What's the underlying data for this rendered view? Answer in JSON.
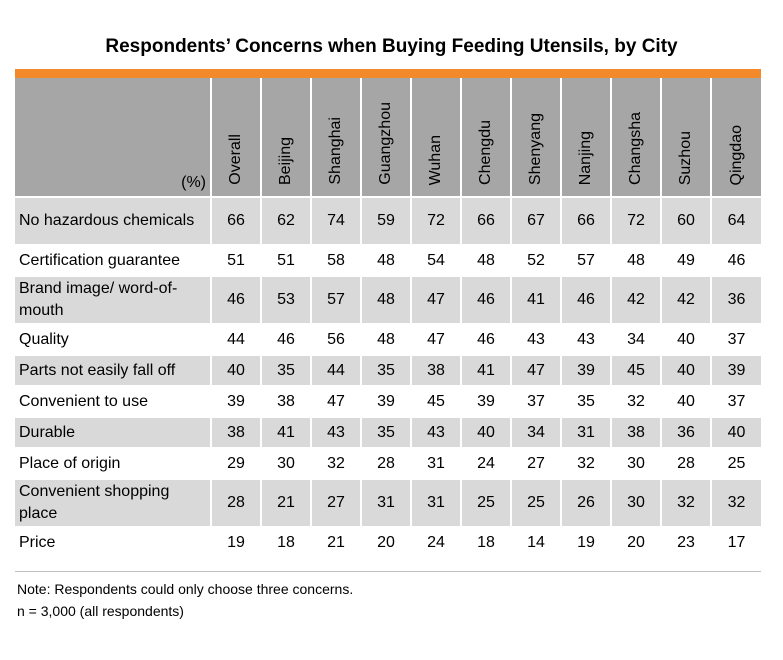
{
  "chart_data": {
    "type": "table",
    "title": "Respondents’ Concerns when Buying Feeding Utensils, by City",
    "unit": "(%)",
    "columns": [
      "Overall",
      "Beijing",
      "Shanghai",
      "Guangzhou",
      "Wuhan",
      "Chengdu",
      "Shenyang",
      "Nanjing",
      "Changsha",
      "Suzhou",
      "Qingdao"
    ],
    "rows": [
      {
        "label": "No hazardous chemicals",
        "values": [
          "66",
          "62",
          "74",
          "59",
          "72",
          "66",
          "67",
          "66",
          "72",
          "60",
          "64"
        ]
      },
      {
        "label": "Certification guarantee",
        "values": [
          "51",
          "51",
          "58",
          "48",
          "54",
          "48",
          "52",
          "57",
          "48",
          "49",
          "46"
        ]
      },
      {
        "label": "Brand image/ word-of-mouth",
        "values": [
          "46",
          "53",
          "57",
          "48",
          "47",
          "46",
          "41",
          "46",
          "42",
          "42",
          "36"
        ]
      },
      {
        "label": "Quality",
        "values": [
          "44",
          "46",
          "56",
          "48",
          "47",
          "46",
          "43",
          "43",
          "34",
          "40",
          "37"
        ]
      },
      {
        "label": "Parts not easily fall off",
        "values": [
          "40",
          "35",
          "44",
          "35",
          "38",
          "41",
          "47",
          "39",
          "45",
          "40",
          "39"
        ]
      },
      {
        "label": "Convenient to use",
        "values": [
          "39",
          "38",
          "47",
          "39",
          "45",
          "39",
          "37",
          "35",
          "32",
          "40",
          "37"
        ]
      },
      {
        "label": "Durable",
        "values": [
          "38",
          "41",
          "43",
          "35",
          "43",
          "40",
          "34",
          "31",
          "38",
          "36",
          "40"
        ]
      },
      {
        "label": "Place of origin",
        "values": [
          "29",
          "30",
          "32",
          "28",
          "31",
          "24",
          "27",
          "32",
          "30",
          "28",
          "25"
        ]
      },
      {
        "label": "Convenient shopping place",
        "values": [
          "28",
          "21",
          "27",
          "31",
          "31",
          "25",
          "25",
          "26",
          "30",
          "32",
          "32"
        ]
      },
      {
        "label": "Price",
        "values": [
          "19",
          "18",
          "21",
          "20",
          "24",
          "18",
          "14",
          "19",
          "20",
          "23",
          "17"
        ]
      }
    ]
  },
  "notes": {
    "line1": "Note: Respondents could only choose three concerns.",
    "line2": "n = 3,000 (all respondents)"
  },
  "colors": {
    "accent": "#f28a2c",
    "header_bg": "#a6a6a6",
    "row_shade": "#d9d9d9"
  }
}
